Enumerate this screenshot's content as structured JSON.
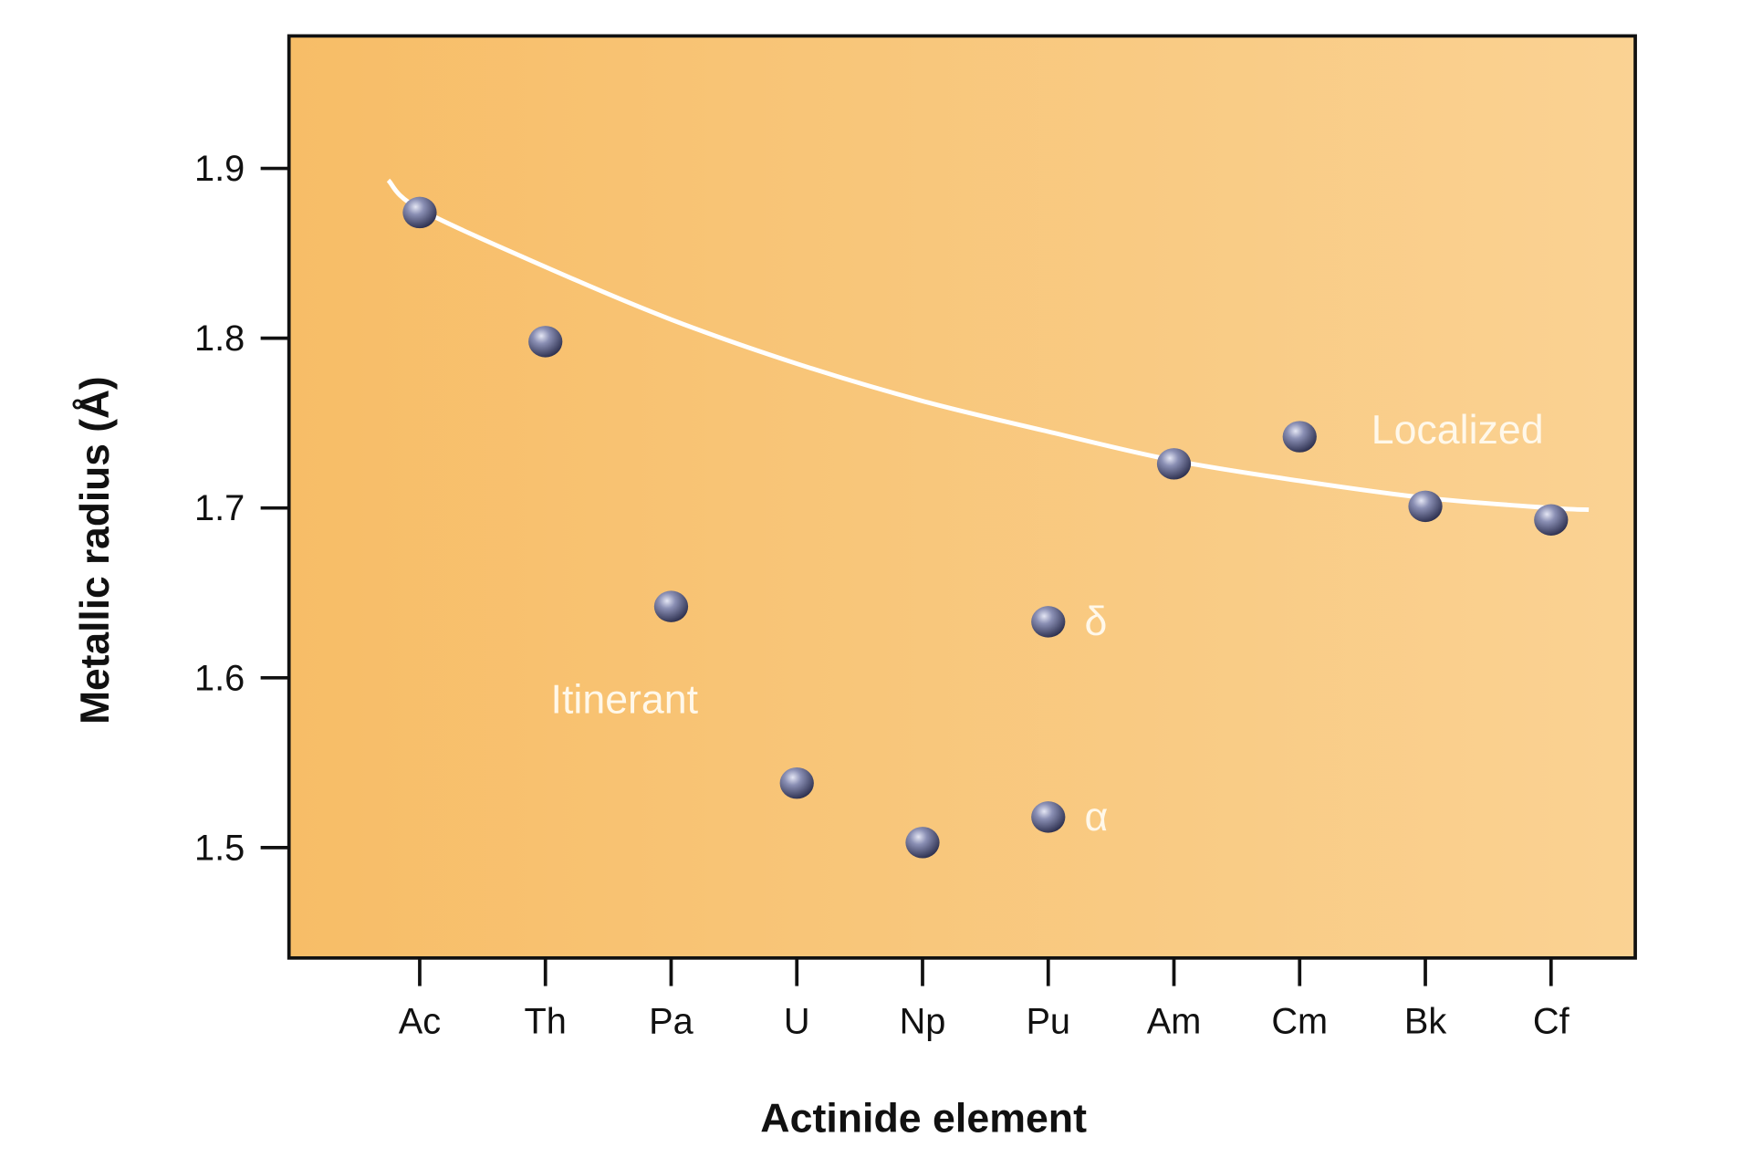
{
  "chart_data": {
    "type": "scatter",
    "title": "",
    "xlabel": "Actinide element",
    "ylabel": "Metallic radius (Å)",
    "categories": [
      "Ac",
      "Th",
      "Pa",
      "U",
      "Np",
      "Pu",
      "Am",
      "Cm",
      "Bk",
      "Cf"
    ],
    "ylim": [
      1.435,
      1.978
    ],
    "xlim_index": [
      -1.04,
      9.67
    ],
    "yticks": [
      "1.5",
      "1.6",
      "1.7",
      "1.8",
      "1.9"
    ],
    "ytick_values": [
      1.5,
      1.6,
      1.7,
      1.8,
      1.9
    ],
    "grid": false,
    "points": [
      {
        "x": "Ac",
        "y": 1.874,
        "label": ""
      },
      {
        "x": "Th",
        "y": 1.798,
        "label": ""
      },
      {
        "x": "Pa",
        "y": 1.642,
        "label": ""
      },
      {
        "x": "U",
        "y": 1.538,
        "label": ""
      },
      {
        "x": "Np",
        "y": 1.503,
        "label": ""
      },
      {
        "x": "Pu",
        "y": 1.633,
        "label": "δ"
      },
      {
        "x": "Pu",
        "y": 1.518,
        "label": "α"
      },
      {
        "x": "Am",
        "y": 1.726,
        "label": ""
      },
      {
        "x": "Cm",
        "y": 1.742,
        "label": ""
      },
      {
        "x": "Bk",
        "y": 1.701,
        "label": ""
      },
      {
        "x": "Cf",
        "y": 1.693,
        "label": ""
      }
    ],
    "trend_curve": {
      "name": "Localized trend",
      "x_index": [
        -0.25,
        0,
        1,
        2,
        3,
        4,
        5,
        6,
        7,
        8,
        9,
        9.3
      ],
      "y": [
        1.893,
        1.876,
        1.842,
        1.811,
        1.785,
        1.763,
        1.745,
        1.728,
        1.716,
        1.706,
        1.7,
        1.699
      ]
    },
    "annotations": [
      "Localized",
      "Itinerant"
    ],
    "colors": {
      "bg_left": "#f7bd67",
      "bg_right": "#fad293",
      "curve": "#ffffff",
      "point": "#5a5f86"
    }
  }
}
